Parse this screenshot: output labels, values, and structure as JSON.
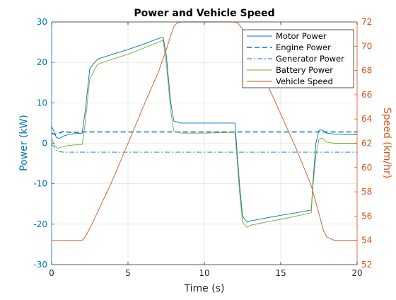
{
  "chart_data": {
    "type": "line",
    "title": "Power and Vehicle Speed",
    "xlabel": "Time (s)",
    "ylabel_left": "Power (kW)",
    "ylabel_right": "Speed (km/hr)",
    "xlim": [
      0,
      20
    ],
    "ylim_left": [
      -30,
      30
    ],
    "ylim_right": [
      52,
      72
    ],
    "x_ticks": [
      0,
      5,
      10,
      15,
      20
    ],
    "y_ticks_left": [
      -30,
      -20,
      -10,
      0,
      10,
      20,
      30
    ],
    "y_ticks_right": [
      52,
      54,
      56,
      58,
      60,
      62,
      64,
      66,
      68,
      70,
      72
    ],
    "grid": true,
    "legend_position": "top-right",
    "colors": {
      "left_axis": "#0072BD",
      "right_axis": "#D95319",
      "motor": "#0072BD",
      "engine": "#0072BD",
      "generator": "#0072BD",
      "battery": "#77AC30",
      "speed": "#D95319"
    },
    "series": [
      {
        "name": "Motor Power",
        "axis": "left",
        "style": "solid",
        "x": [
          0,
          0.15,
          0.3,
          0.5,
          0.8,
          1.2,
          1.6,
          2.0,
          2.2,
          2.5,
          3.0,
          4.0,
          5.0,
          6.0,
          7.0,
          7.3,
          7.5,
          7.8,
          8.0,
          8.5,
          9.0,
          10.0,
          11.0,
          12.0,
          12.1,
          12.3,
          12.5,
          12.8,
          13.0,
          14.0,
          15.0,
          16.0,
          17.0,
          17.1,
          17.3,
          17.5,
          17.7,
          18.0,
          18.5,
          19.0,
          20.0
        ],
        "values": [
          4.2,
          3.0,
          1.5,
          1.2,
          1.8,
          2.3,
          2.4,
          2.5,
          8.0,
          18.5,
          20.8,
          22.0,
          23.2,
          24.5,
          25.9,
          26.2,
          22.0,
          10.0,
          5.5,
          5.0,
          5.0,
          5.0,
          5.0,
          5.0,
          0.0,
          -10.0,
          -18.0,
          -19.5,
          -19.2,
          -18.5,
          -17.8,
          -17.2,
          -16.5,
          -10.0,
          0.0,
          3.2,
          3.3,
          2.5,
          2.3,
          2.2,
          2.1
        ]
      },
      {
        "name": "Engine Power",
        "axis": "left",
        "style": "dashed",
        "x": [
          0,
          0.2,
          0.5,
          0.8,
          1.0,
          1.3,
          1.6,
          2.0,
          20.0
        ],
        "values": [
          2.5,
          2.2,
          2.5,
          3.0,
          2.8,
          2.7,
          2.7,
          2.8,
          2.8
        ]
      },
      {
        "name": "Generator Power",
        "axis": "left",
        "style": "dashdot",
        "x": [
          0,
          0.15,
          0.3,
          0.5,
          0.8,
          1.2,
          20.0
        ],
        "values": [
          -0.3,
          -0.8,
          -1.8,
          -2.1,
          -2.2,
          -2.2,
          -2.2
        ]
      },
      {
        "name": "Battery Power",
        "axis": "left",
        "style": "solid",
        "x": [
          0,
          0.2,
          0.4,
          0.6,
          1.0,
          1.5,
          2.0,
          2.2,
          2.5,
          3.0,
          4.0,
          5.0,
          6.0,
          7.0,
          7.3,
          7.5,
          7.8,
          8.0,
          8.5,
          9.0,
          10.0,
          11.0,
          12.0,
          12.1,
          12.3,
          12.5,
          12.8,
          13.0,
          14.0,
          15.0,
          16.0,
          17.0,
          17.1,
          17.3,
          17.5,
          17.7,
          18.0,
          18.5,
          19.0,
          20.0
        ],
        "values": [
          1.2,
          -0.5,
          -1.3,
          -1.0,
          -0.6,
          -0.4,
          -0.3,
          5.0,
          16.0,
          19.5,
          20.8,
          22.0,
          23.5,
          25.0,
          25.5,
          20.0,
          8.0,
          3.0,
          2.5,
          2.5,
          2.5,
          2.6,
          2.7,
          -2.0,
          -12.0,
          -19.5,
          -20.8,
          -20.3,
          -19.5,
          -18.8,
          -18.0,
          -17.2,
          -11.0,
          -3.0,
          1.0,
          1.3,
          0.3,
          0.0,
          0.0,
          0.0
        ]
      },
      {
        "name": "Vehicle Speed",
        "axis": "right",
        "style": "solid",
        "x": [
          0,
          1.0,
          2.0,
          2.2,
          2.5,
          3.0,
          4.0,
          5.0,
          6.0,
          7.0,
          7.5,
          7.8,
          8.0,
          8.2,
          8.5,
          12.0,
          12.2,
          12.5,
          13.0,
          14.0,
          15.0,
          16.0,
          17.0,
          17.2,
          17.5,
          17.8,
          18.0,
          18.5,
          19.0,
          20.0
        ],
        "values": [
          54.0,
          54.0,
          54.0,
          54.3,
          55.0,
          56.3,
          59.0,
          62.0,
          65.0,
          67.9,
          69.7,
          70.9,
          71.6,
          71.9,
          72.0,
          72.0,
          71.9,
          71.4,
          70.0,
          67.2,
          64.4,
          61.6,
          58.5,
          57.6,
          56.2,
          54.8,
          54.3,
          54.0,
          54.0,
          54.0
        ]
      }
    ]
  }
}
